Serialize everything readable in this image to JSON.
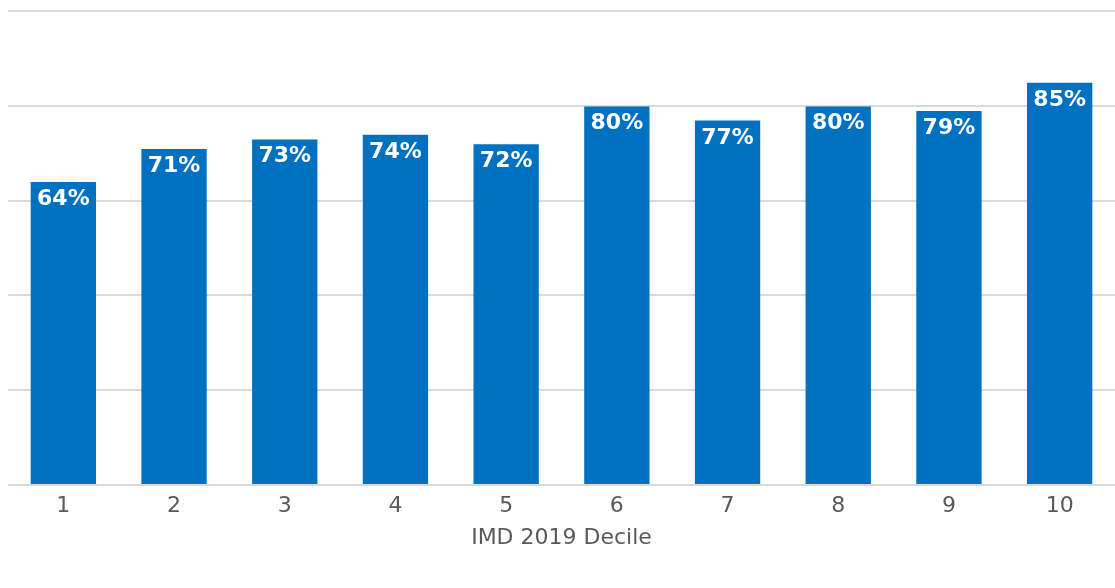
{
  "chart_data": {
    "type": "bar",
    "xlabel": "IMD 2019 Decile",
    "categories": [
      "1",
      "2",
      "3",
      "4",
      "5",
      "6",
      "7",
      "8",
      "9",
      "10"
    ],
    "values": [
      64,
      71,
      73,
      74,
      72,
      80,
      77,
      80,
      79,
      85
    ],
    "value_labels": [
      "64%",
      "71%",
      "73%",
      "74%",
      "72%",
      "80%",
      "77%",
      "80%",
      "79%",
      "85%"
    ],
    "color": "#0070c0",
    "ylim": [
      0,
      100
    ],
    "yticks": [
      {
        "value": 0,
        "label": null
      },
      {
        "value": 20,
        "label": null
      },
      {
        "value": 40,
        "label": null
      },
      {
        "value": 60,
        "label": null
      },
      {
        "value": 80,
        "label": null
      },
      {
        "value": 100,
        "label": null
      }
    ],
    "grid": "y",
    "tick_labels": "x"
  }
}
